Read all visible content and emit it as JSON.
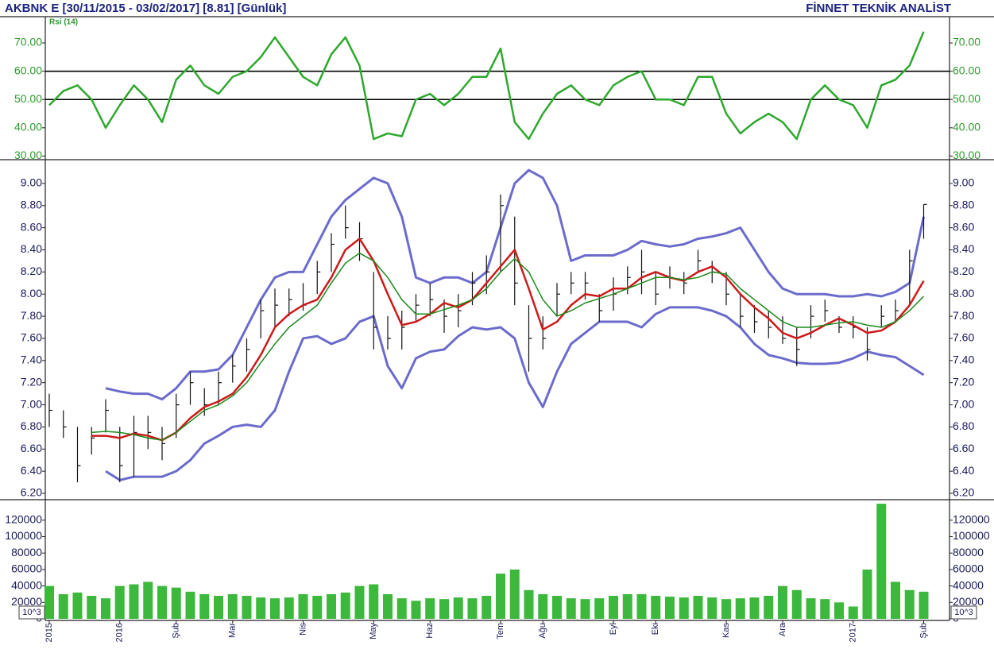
{
  "header": {
    "title": "AKBNK E  [30/11/2015 - 03/02/2017]  [8.81]  [Günlük]",
    "brand": "FİNNET TEKNİK ANALİST"
  },
  "chart_data": [
    {
      "type": "line",
      "label": "Rsi (14)",
      "axis_color": "#2e9a2e",
      "ylim": [
        29,
        79
      ],
      "yticks": [
        {
          "value": 30,
          "label": "30.00"
        },
        {
          "value": 40,
          "label": "40.00"
        },
        {
          "value": 50,
          "label": "50.00"
        },
        {
          "value": 60,
          "label": "60.00"
        },
        {
          "value": 70,
          "label": "70.00"
        }
      ],
      "levels": [
        50,
        60
      ],
      "series": [
        {
          "color": "#2ea82e",
          "values": [
            48,
            53,
            55,
            50,
            40,
            48,
            55,
            50,
            42,
            57,
            62,
            55,
            52,
            58,
            60,
            65,
            72,
            65,
            58,
            55,
            66,
            72,
            62,
            36,
            38,
            37,
            50,
            52,
            48,
            52,
            58,
            58,
            68,
            42,
            36,
            45,
            52,
            55,
            50,
            48,
            55,
            58,
            60,
            50,
            50,
            48,
            58,
            58,
            45,
            38,
            42,
            45,
            42,
            36,
            50,
            55,
            50,
            48,
            40,
            55,
            57,
            62,
            74
          ]
        }
      ]
    },
    {
      "type": "hlc",
      "axis_color": "#1a1a5a",
      "ylim": [
        6.15,
        9.2
      ],
      "yticks": [
        {
          "value": 6.2,
          "label": "6.20"
        },
        {
          "value": 6.4,
          "label": "6.40"
        },
        {
          "value": 6.6,
          "label": "6.60"
        },
        {
          "value": 6.8,
          "label": "6.80"
        },
        {
          "value": 7,
          "label": "7.00"
        },
        {
          "value": 7.2,
          "label": "7.20"
        },
        {
          "value": 7.4,
          "label": "7.40"
        },
        {
          "value": 7.6,
          "label": "7.60"
        },
        {
          "value": 7.8,
          "label": "7.80"
        },
        {
          "value": 8,
          "label": "8.00"
        },
        {
          "value": 8.2,
          "label": "8.20"
        },
        {
          "value": 8.4,
          "label": "8.40"
        },
        {
          "value": 8.6,
          "label": "8.60"
        },
        {
          "value": 8.8,
          "label": "8.80"
        },
        {
          "value": 9,
          "label": "9.00"
        }
      ],
      "bars": {
        "color": "#111111",
        "high": [
          7.1,
          6.95,
          6.8,
          6.8,
          7.05,
          6.8,
          6.9,
          6.9,
          6.8,
          7.1,
          7.3,
          7.15,
          7.3,
          7.45,
          7.6,
          7.95,
          8.05,
          8.05,
          8.1,
          8.3,
          8.55,
          8.8,
          8.65,
          8.2,
          7.8,
          7.85,
          8.0,
          8.1,
          7.95,
          8.0,
          8.2,
          8.35,
          8.9,
          8.7,
          7.9,
          7.8,
          8.1,
          8.2,
          8.2,
          8.0,
          8.15,
          8.25,
          8.4,
          8.2,
          8.25,
          8.2,
          8.4,
          8.3,
          8.2,
          8.0,
          7.9,
          7.85,
          7.8,
          7.7,
          7.9,
          7.95,
          7.8,
          7.8,
          7.7,
          7.9,
          7.95,
          8.4,
          8.81
        ],
        "low": [
          6.8,
          6.7,
          6.3,
          6.55,
          6.75,
          6.3,
          6.35,
          6.6,
          6.5,
          6.7,
          7.0,
          6.9,
          7.0,
          7.2,
          7.3,
          7.6,
          7.7,
          7.8,
          7.85,
          8.0,
          8.2,
          8.5,
          8.3,
          7.5,
          7.5,
          7.5,
          7.75,
          7.8,
          7.65,
          7.7,
          7.9,
          8.0,
          8.2,
          7.9,
          7.3,
          7.5,
          7.8,
          8.0,
          7.95,
          7.75,
          7.85,
          8.0,
          8.0,
          7.9,
          8.05,
          8.0,
          8.2,
          8.1,
          7.9,
          7.7,
          7.65,
          7.6,
          7.55,
          7.35,
          7.6,
          7.75,
          7.65,
          7.6,
          7.4,
          7.7,
          7.75,
          7.9,
          8.5
        ],
        "close": [
          6.95,
          6.8,
          6.45,
          6.7,
          6.95,
          6.45,
          6.75,
          6.75,
          6.65,
          7.0,
          7.2,
          7.0,
          7.2,
          7.35,
          7.5,
          7.85,
          7.9,
          7.95,
          7.9,
          8.2,
          8.45,
          8.6,
          8.5,
          7.7,
          7.6,
          7.7,
          7.9,
          7.95,
          7.8,
          7.85,
          8.1,
          8.2,
          8.8,
          8.1,
          7.6,
          7.6,
          8.0,
          8.1,
          8.1,
          7.85,
          8.0,
          8.15,
          8.2,
          8.0,
          8.15,
          8.1,
          8.3,
          8.2,
          8.0,
          7.8,
          7.75,
          7.7,
          7.6,
          7.5,
          7.8,
          7.85,
          7.7,
          7.7,
          7.5,
          7.8,
          7.85,
          8.3,
          8.81
        ]
      },
      "series": [
        {
          "color": "#6b6bcc",
          "values": [
            null,
            null,
            null,
            null,
            7.15,
            7.12,
            7.1,
            7.1,
            7.05,
            7.15,
            7.3,
            7.3,
            7.32,
            7.45,
            7.7,
            7.95,
            8.15,
            8.2,
            8.2,
            8.45,
            8.7,
            8.85,
            8.95,
            9.05,
            9.0,
            8.7,
            8.15,
            8.1,
            8.15,
            8.15,
            8.1,
            8.2,
            8.6,
            9.0,
            9.12,
            9.05,
            8.8,
            8.3,
            8.35,
            8.35,
            8.35,
            8.4,
            8.48,
            8.45,
            8.43,
            8.45,
            8.5,
            8.52,
            8.55,
            8.6,
            8.4,
            8.2,
            8.05,
            8.0,
            8.0,
            8.0,
            7.98,
            7.98,
            8.0,
            7.98,
            8.02,
            8.1,
            8.7
          ]
        },
        {
          "color": "#6b6bcc",
          "values": [
            null,
            null,
            null,
            null,
            6.4,
            6.32,
            6.35,
            6.35,
            6.35,
            6.4,
            6.5,
            6.65,
            6.72,
            6.8,
            6.82,
            6.8,
            6.95,
            7.3,
            7.6,
            7.62,
            7.55,
            7.6,
            7.75,
            7.8,
            7.35,
            7.15,
            7.42,
            7.48,
            7.5,
            7.62,
            7.7,
            7.68,
            7.7,
            7.6,
            7.2,
            6.98,
            7.3,
            7.55,
            7.65,
            7.75,
            7.75,
            7.75,
            7.7,
            7.82,
            7.88,
            7.88,
            7.88,
            7.85,
            7.8,
            7.7,
            7.55,
            7.45,
            7.42,
            7.38,
            7.37,
            7.37,
            7.38,
            7.42,
            7.48,
            7.45,
            7.43,
            7.35,
            7.27
          ]
        },
        {
          "color": "#cc1a1a",
          "values": [
            null,
            null,
            null,
            6.72,
            6.72,
            6.7,
            6.74,
            6.72,
            6.68,
            6.75,
            6.88,
            6.98,
            7.03,
            7.1,
            7.25,
            7.45,
            7.7,
            7.82,
            7.9,
            7.95,
            8.15,
            8.4,
            8.5,
            8.3,
            8.0,
            7.72,
            7.75,
            7.82,
            7.92,
            7.88,
            7.95,
            8.1,
            8.25,
            8.4,
            8.05,
            7.68,
            7.75,
            7.9,
            8.0,
            7.98,
            8.05,
            8.05,
            8.15,
            8.2,
            8.15,
            8.12,
            8.2,
            8.25,
            8.15,
            8.0,
            7.88,
            7.78,
            7.65,
            7.6,
            7.65,
            7.72,
            7.78,
            7.72,
            7.65,
            7.67,
            7.75,
            7.9,
            8.12
          ]
        },
        {
          "color": "#1a8a1a",
          "values": [
            null,
            null,
            null,
            6.75,
            6.76,
            6.75,
            6.73,
            6.7,
            6.68,
            6.75,
            6.85,
            6.95,
            7.0,
            7.08,
            7.2,
            7.38,
            7.55,
            7.7,
            7.8,
            7.9,
            8.1,
            8.28,
            8.37,
            8.3,
            8.15,
            7.95,
            7.82,
            7.82,
            7.86,
            7.9,
            7.95,
            8.05,
            8.2,
            8.32,
            8.2,
            7.95,
            7.8,
            7.85,
            7.92,
            7.96,
            8.0,
            8.05,
            8.1,
            8.15,
            8.15,
            8.13,
            8.15,
            8.2,
            8.18,
            8.05,
            7.95,
            7.85,
            7.75,
            7.7,
            7.7,
            7.72,
            7.74,
            7.75,
            7.72,
            7.7,
            7.75,
            7.85,
            7.98
          ]
        }
      ]
    },
    {
      "type": "bar",
      "axis_color": "#1a1a5a",
      "unit_label": "10^3",
      "color": "#3cb83c",
      "ylim": [
        0,
        143000
      ],
      "yticks": [
        0,
        20000,
        40000,
        60000,
        80000,
        100000,
        120000
      ],
      "categories": [
        "2015",
        null,
        null,
        null,
        null,
        "2016",
        null,
        null,
        null,
        "Şub",
        null,
        null,
        null,
        "Mar",
        null,
        null,
        null,
        null,
        "Nis",
        null,
        null,
        null,
        null,
        "May",
        null,
        null,
        null,
        "Haz",
        null,
        null,
        null,
        null,
        "Tem",
        null,
        null,
        "Ağu",
        null,
        null,
        null,
        null,
        "Eyl",
        null,
        null,
        "Eki",
        null,
        null,
        null,
        null,
        "Kas",
        null,
        null,
        null,
        "Ara",
        null,
        null,
        null,
        null,
        "2017",
        null,
        null,
        null,
        null,
        "Şub"
      ],
      "values": [
        40000,
        30000,
        32000,
        28000,
        25000,
        40000,
        42000,
        45000,
        40000,
        38000,
        33000,
        30000,
        28000,
        30000,
        28000,
        26000,
        25000,
        26000,
        30000,
        28000,
        30000,
        32000,
        40000,
        42000,
        30000,
        25000,
        22000,
        25000,
        24000,
        26000,
        25000,
        28000,
        55000,
        60000,
        35000,
        30000,
        28000,
        25000,
        24000,
        25000,
        28000,
        30000,
        30000,
        28000,
        27000,
        26000,
        28000,
        26000,
        24000,
        25000,
        26000,
        28000,
        40000,
        35000,
        25000,
        24000,
        20000,
        15000,
        60000,
        140000,
        45000,
        35000,
        33000
      ]
    }
  ]
}
